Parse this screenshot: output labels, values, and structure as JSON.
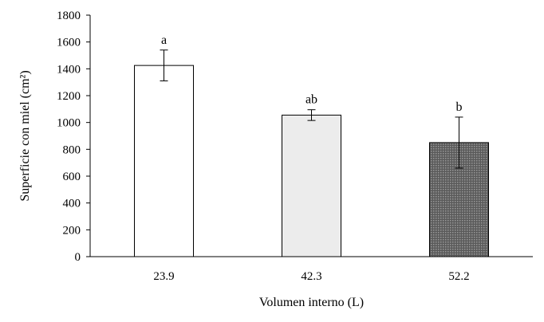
{
  "chart_data": {
    "type": "bar",
    "categories": [
      "23.9",
      "42.3",
      "52.2"
    ],
    "values": [
      1425,
      1055,
      850
    ],
    "errors": [
      115,
      40,
      190
    ],
    "significance_labels": [
      "a",
      "ab",
      "b"
    ],
    "bar_colors": [
      "#ffffff",
      "#ececec",
      "#7a7a7a"
    ],
    "xlabel": "Volumen interno (L)",
    "ylabel": "Superficie con miel (cm²)",
    "ylim": [
      0,
      1800
    ],
    "yticks": [
      0,
      200,
      400,
      600,
      800,
      1000,
      1200,
      1400,
      1600,
      1800
    ],
    "grid": false
  }
}
